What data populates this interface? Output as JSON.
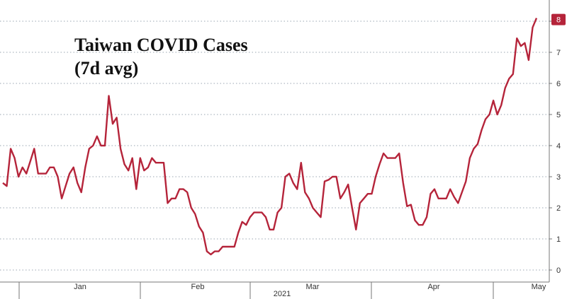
{
  "chart_data": {
    "type": "line",
    "title": [
      "Taiwan COVID Cases",
      "(7d avg)"
    ],
    "xlabel": "2021",
    "ylabel": "",
    "ylim": [
      0,
      8
    ],
    "yticks": [
      0,
      1,
      2,
      3,
      4,
      5,
      6,
      7,
      8
    ],
    "grid": true,
    "months": [
      "Jan",
      "Feb",
      "Mar",
      "Apr",
      "May"
    ],
    "last_value_label": "8",
    "series_color": "#b5243a",
    "series": [
      {
        "values": [
          2.8,
          2.7,
          3.9,
          3.6,
          3.0,
          3.3,
          3.1,
          3.5,
          3.9,
          3.1,
          3.1,
          3.1,
          3.3,
          3.3,
          3.0,
          2.3,
          2.7,
          3.1,
          3.3,
          2.8,
          2.5,
          3.3,
          3.9,
          4.0,
          4.3,
          4.0,
          4.0,
          5.6,
          4.7,
          4.9,
          3.9,
          3.4,
          3.2,
          3.6,
          2.6,
          3.6,
          3.2,
          3.3,
          3.6,
          3.45,
          3.45,
          3.45,
          2.15,
          2.3,
          2.3,
          2.6,
          2.6,
          2.5,
          2.0,
          1.8,
          1.4,
          1.2,
          0.6,
          0.5,
          0.6,
          0.6,
          0.75,
          0.75,
          0.75,
          0.75,
          1.2,
          1.55,
          1.45,
          1.7,
          1.85,
          1.85,
          1.85,
          1.7,
          1.3,
          1.3,
          1.85,
          2.0,
          3.0,
          3.1,
          2.8,
          2.6,
          3.45,
          2.5,
          2.3,
          2.0,
          1.85,
          1.7,
          2.85,
          2.9,
          3.0,
          3.0,
          2.3,
          2.5,
          2.75,
          2.0,
          1.3,
          2.15,
          2.3,
          2.45,
          2.45,
          3.0,
          3.4,
          3.75,
          3.6,
          3.6,
          3.6,
          3.75,
          2.8,
          2.05,
          2.1,
          1.6,
          1.45,
          1.45,
          1.7,
          2.45,
          2.6,
          2.3,
          2.3,
          2.3,
          2.6,
          2.35,
          2.15,
          2.5,
          2.85,
          3.6,
          3.9,
          4.05,
          4.5,
          4.85,
          5.0,
          5.45,
          5.0,
          5.3,
          5.85,
          6.15,
          6.3,
          7.45,
          7.2,
          7.3,
          6.75,
          7.8,
          8.1
        ]
      }
    ]
  }
}
